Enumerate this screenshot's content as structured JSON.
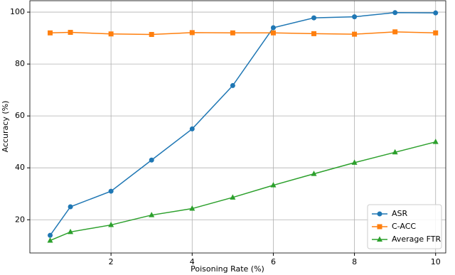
{
  "chart_data": {
    "type": "line",
    "x_label": "Poisoning Rate (%)",
    "y_label": "Accuracy (%)",
    "x": [
      0.5,
      1,
      2,
      3,
      4,
      5,
      6,
      7,
      8,
      9,
      10
    ],
    "series": [
      {
        "name": "ASR",
        "color": "#1f77b4",
        "marker": "circle",
        "values": [
          14,
          25,
          31,
          43,
          55,
          71.7,
          94,
          97.8,
          98.2,
          99.8,
          99.7
        ]
      },
      {
        "name": "C-ACC",
        "color": "#ff7f0e",
        "marker": "square",
        "values": [
          92,
          92.2,
          91.6,
          91.4,
          92.1,
          92,
          92,
          91.7,
          91.5,
          92.4,
          92
        ]
      },
      {
        "name": "Average FTR",
        "color": "#2ca02c",
        "marker": "triangle",
        "values": [
          12,
          15.3,
          18,
          21.8,
          24.3,
          28.6,
          33.3,
          37.7,
          42,
          46,
          50
        ]
      }
    ],
    "xlim": [
      0,
      10.25
    ],
    "ylim": [
      7.2,
      104.4
    ],
    "xticks": [
      2,
      4,
      6,
      8,
      10
    ],
    "yticks": [
      20,
      40,
      60,
      80,
      100
    ],
    "grid": true,
    "legend": "lower-right"
  }
}
